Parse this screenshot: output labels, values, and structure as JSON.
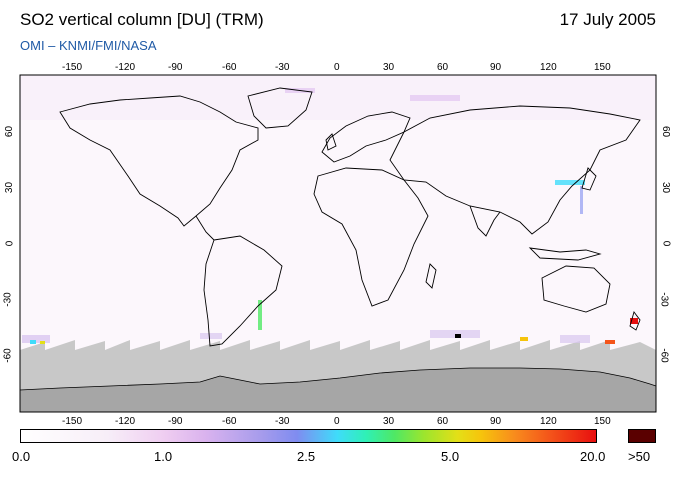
{
  "header": {
    "title": "SO2 vertical column [DU] (TRM)",
    "date": "17 July 2005",
    "source": "OMI  –  KNMI/FMI/NASA"
  },
  "map": {
    "lon_ticks": [
      "-150",
      "-120",
      "-90",
      "-60",
      "-30",
      "0",
      "30",
      "60",
      "90",
      "120",
      "150"
    ],
    "lat_ticks": [
      "60",
      "30",
      "0",
      "-30",
      "-60"
    ],
    "colors": {
      "land_outline": "#000000",
      "no_data_south": "#c8c8c8",
      "antarctica": "#a6a6a6",
      "background": "#fcf7fc"
    }
  },
  "colorbar": {
    "labels": [
      "0.0",
      "1.0",
      "2.5",
      "5.0",
      "20.0"
    ],
    "overflow_label": ">50",
    "overflow_color": "#5a0000"
  }
}
